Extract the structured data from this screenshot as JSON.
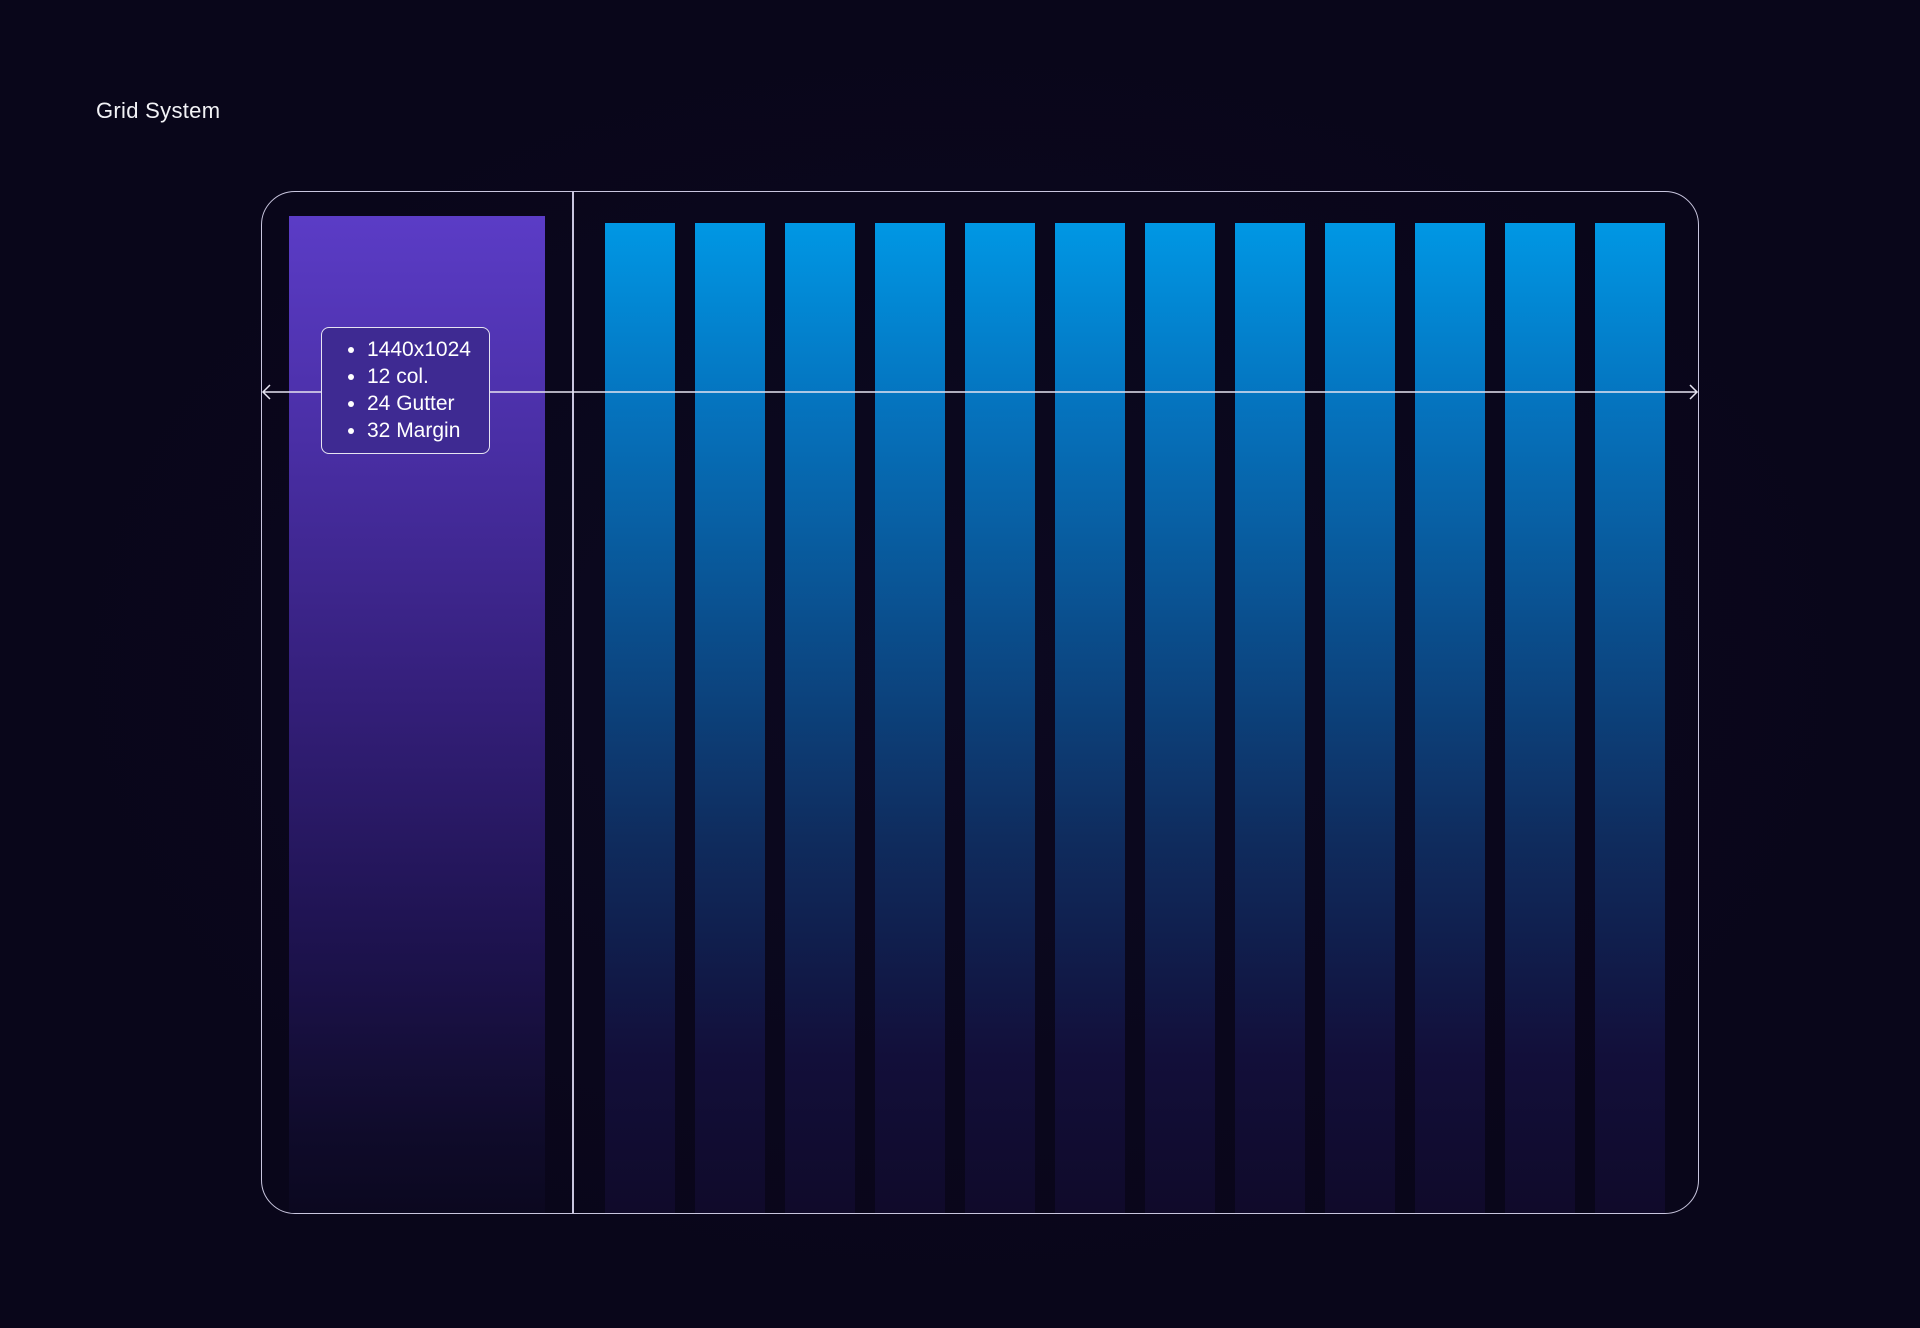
{
  "title": "Grid System",
  "specs": [
    "1440x1024",
    "12 col.",
    "24 Gutter",
    "32 Margin"
  ],
  "grid": {
    "column_count": 12
  },
  "colors": {
    "background": "#09061a",
    "sidebar_top": "#5b3cc6",
    "column_top": "#0097e4",
    "outline": "#c9c6df"
  }
}
